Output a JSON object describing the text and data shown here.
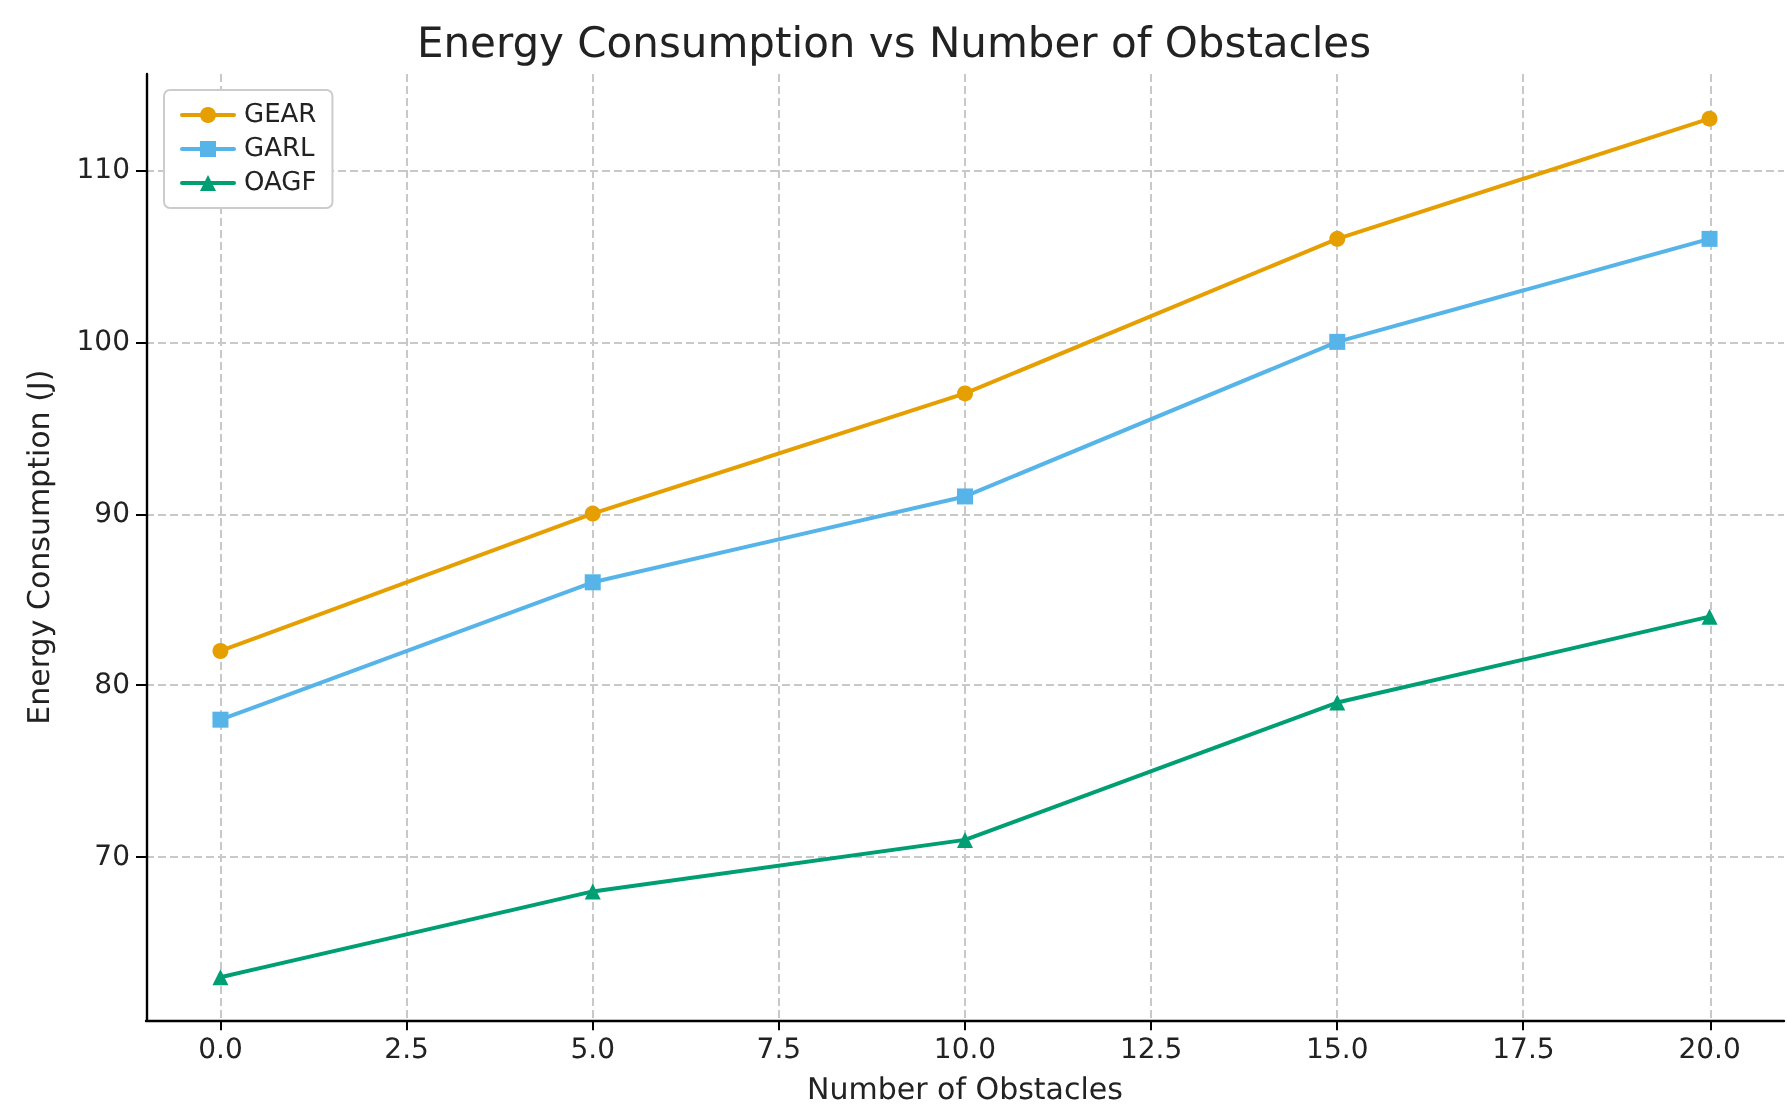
{
  "chart_data": {
    "type": "line",
    "title": "Energy Consumption vs Number of Obstacles",
    "xlabel": "Number of Obstacles",
    "ylabel": "Energy Consumption (J)",
    "x": [
      0,
      5,
      10,
      15,
      20
    ],
    "series": [
      {
        "name": "GEAR",
        "color": "#e69f00",
        "marker": "circle",
        "values": [
          82,
          90,
          97,
          106,
          113
        ]
      },
      {
        "name": "GARL",
        "color": "#56b4e9",
        "marker": "square",
        "values": [
          78,
          86,
          91,
          100,
          106
        ]
      },
      {
        "name": "OAGF",
        "color": "#009e73",
        "marker": "triangle",
        "values": [
          63,
          68,
          71,
          79,
          84
        ]
      }
    ],
    "xlim": [
      -1,
      21
    ],
    "xticks": [
      {
        "value": 0,
        "label": "0.0"
      },
      {
        "value": 2.5,
        "label": "2.5"
      },
      {
        "value": 5,
        "label": "5.0"
      },
      {
        "value": 7.5,
        "label": "7.5"
      },
      {
        "value": 10,
        "label": "10.0"
      },
      {
        "value": 12.5,
        "label": "12.5"
      },
      {
        "value": 15,
        "label": "15.0"
      },
      {
        "value": 17.5,
        "label": "17.5"
      },
      {
        "value": 20,
        "label": "20.0"
      }
    ],
    "ylim": [
      60.5,
      115.6
    ],
    "yticks": [
      70,
      80,
      90,
      100,
      110
    ],
    "grid": true,
    "legend": "top left",
    "line_style": "solid"
  }
}
